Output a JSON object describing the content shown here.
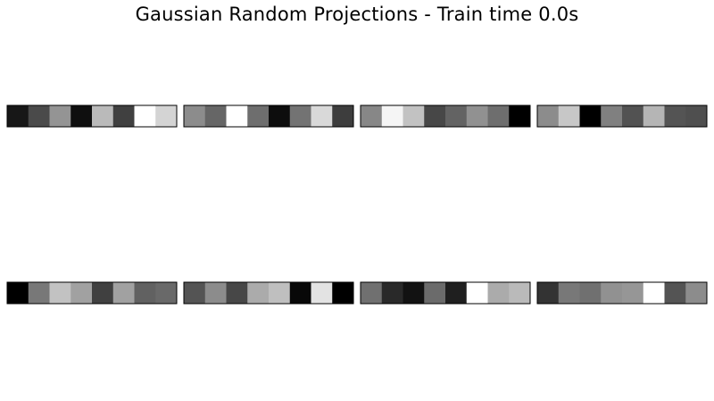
{
  "chart_data": {
    "type": "heatmap",
    "title": "Gaussian Random Projections - Train time 0.0s",
    "colormap": "gray",
    "grid": false,
    "layout": {
      "rows": 2,
      "cols": 4
    },
    "panels": [
      {
        "values": [
          0.09,
          0.29,
          0.58,
          0.06,
          0.73,
          0.25,
          1.0,
          0.83
        ]
      },
      {
        "values": [
          0.55,
          0.4,
          1.0,
          0.43,
          0.05,
          0.45,
          0.85,
          0.24
        ]
      },
      {
        "values": [
          0.53,
          0.96,
          0.76,
          0.28,
          0.39,
          0.57,
          0.43,
          0.0
        ]
      },
      {
        "values": [
          0.55,
          0.78,
          0.0,
          0.5,
          0.32,
          0.71,
          0.33,
          0.31
        ]
      },
      {
        "values": [
          0.0,
          0.47,
          0.76,
          0.63,
          0.25,
          0.63,
          0.38,
          0.41
        ]
      },
      {
        "values": [
          0.33,
          0.55,
          0.28,
          0.67,
          0.75,
          0.03,
          0.89,
          0.0
        ]
      },
      {
        "values": [
          0.44,
          0.16,
          0.07,
          0.42,
          0.12,
          1.0,
          0.67,
          0.73
        ]
      },
      {
        "values": [
          0.2,
          0.47,
          0.44,
          0.57,
          0.59,
          1.0,
          0.33,
          0.55
        ]
      }
    ]
  }
}
